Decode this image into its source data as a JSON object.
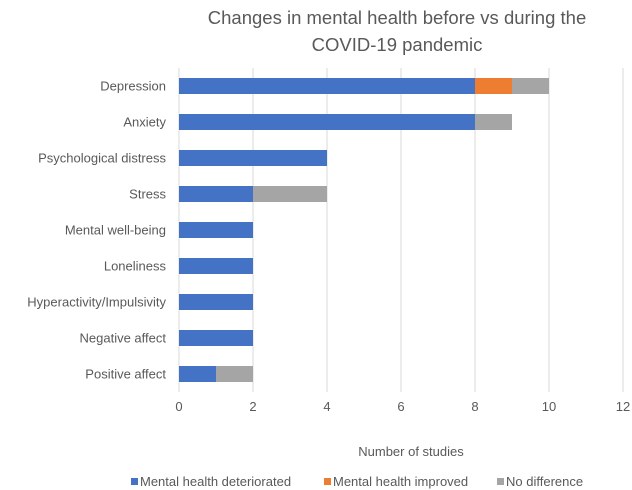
{
  "chart_data": {
    "type": "bar",
    "orientation": "horizontal",
    "stacked": true,
    "title_lines": [
      "Changes in mental health before vs during the",
      "COVID-19 pandemic"
    ],
    "xlabel": "Number of studies",
    "ylabel": "",
    "xlim": [
      0,
      12
    ],
    "xticks": [
      0,
      2,
      4,
      6,
      8,
      10,
      12
    ],
    "grid": true,
    "legend_position": "bottom",
    "categories": [
      "Depression",
      "Anxiety",
      "Psychological distress",
      "Stress",
      "Mental well-being",
      "Loneliness",
      "Hyperactivity/Impulsivity",
      "Negative affect",
      "Positive affect"
    ],
    "series": [
      {
        "name": "Mental health deteriorated",
        "color": "#4472c4",
        "values": [
          8,
          8,
          4,
          2,
          2,
          2,
          2,
          2,
          1
        ]
      },
      {
        "name": "Mental health improved",
        "color": "#ed7d31",
        "values": [
          1,
          0,
          0,
          0,
          0,
          0,
          0,
          0,
          0
        ]
      },
      {
        "name": "No difference",
        "color": "#a5a5a5",
        "values": [
          1,
          1,
          0,
          2,
          0,
          0,
          0,
          0,
          1
        ]
      }
    ]
  }
}
